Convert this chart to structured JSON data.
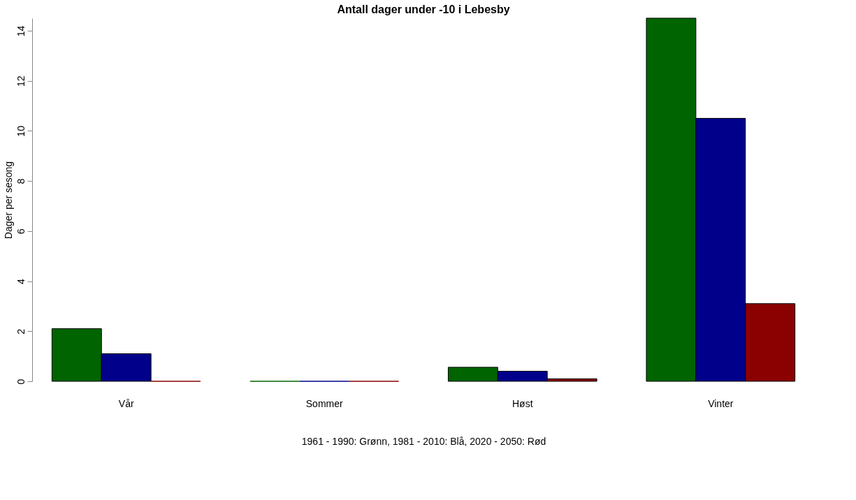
{
  "chart_data": {
    "type": "bar",
    "title": "Antall dager under -10 i Lebesby",
    "xlabel": "1961 - 1990: Grønn, 1981 - 2010: Blå, 2020 - 2050: Rød",
    "ylabel": "Dager per sesong",
    "categories": [
      "Vår",
      "Sommer",
      "Høst",
      "Vinter"
    ],
    "series": [
      {
        "color": "#006400",
        "values": [
          2.1,
          0,
          0.56,
          14.5
        ]
      },
      {
        "color": "#00008b",
        "values": [
          1.1,
          0,
          0.4,
          10.5
        ]
      },
      {
        "color": "#8b0000",
        "values": [
          0,
          0,
          0.1,
          3.1
        ]
      }
    ],
    "ylim": [
      0,
      14.5
    ],
    "yticks": [
      0,
      2,
      4,
      6,
      8,
      10,
      12,
      14
    ],
    "grid": false,
    "legend": false
  }
}
